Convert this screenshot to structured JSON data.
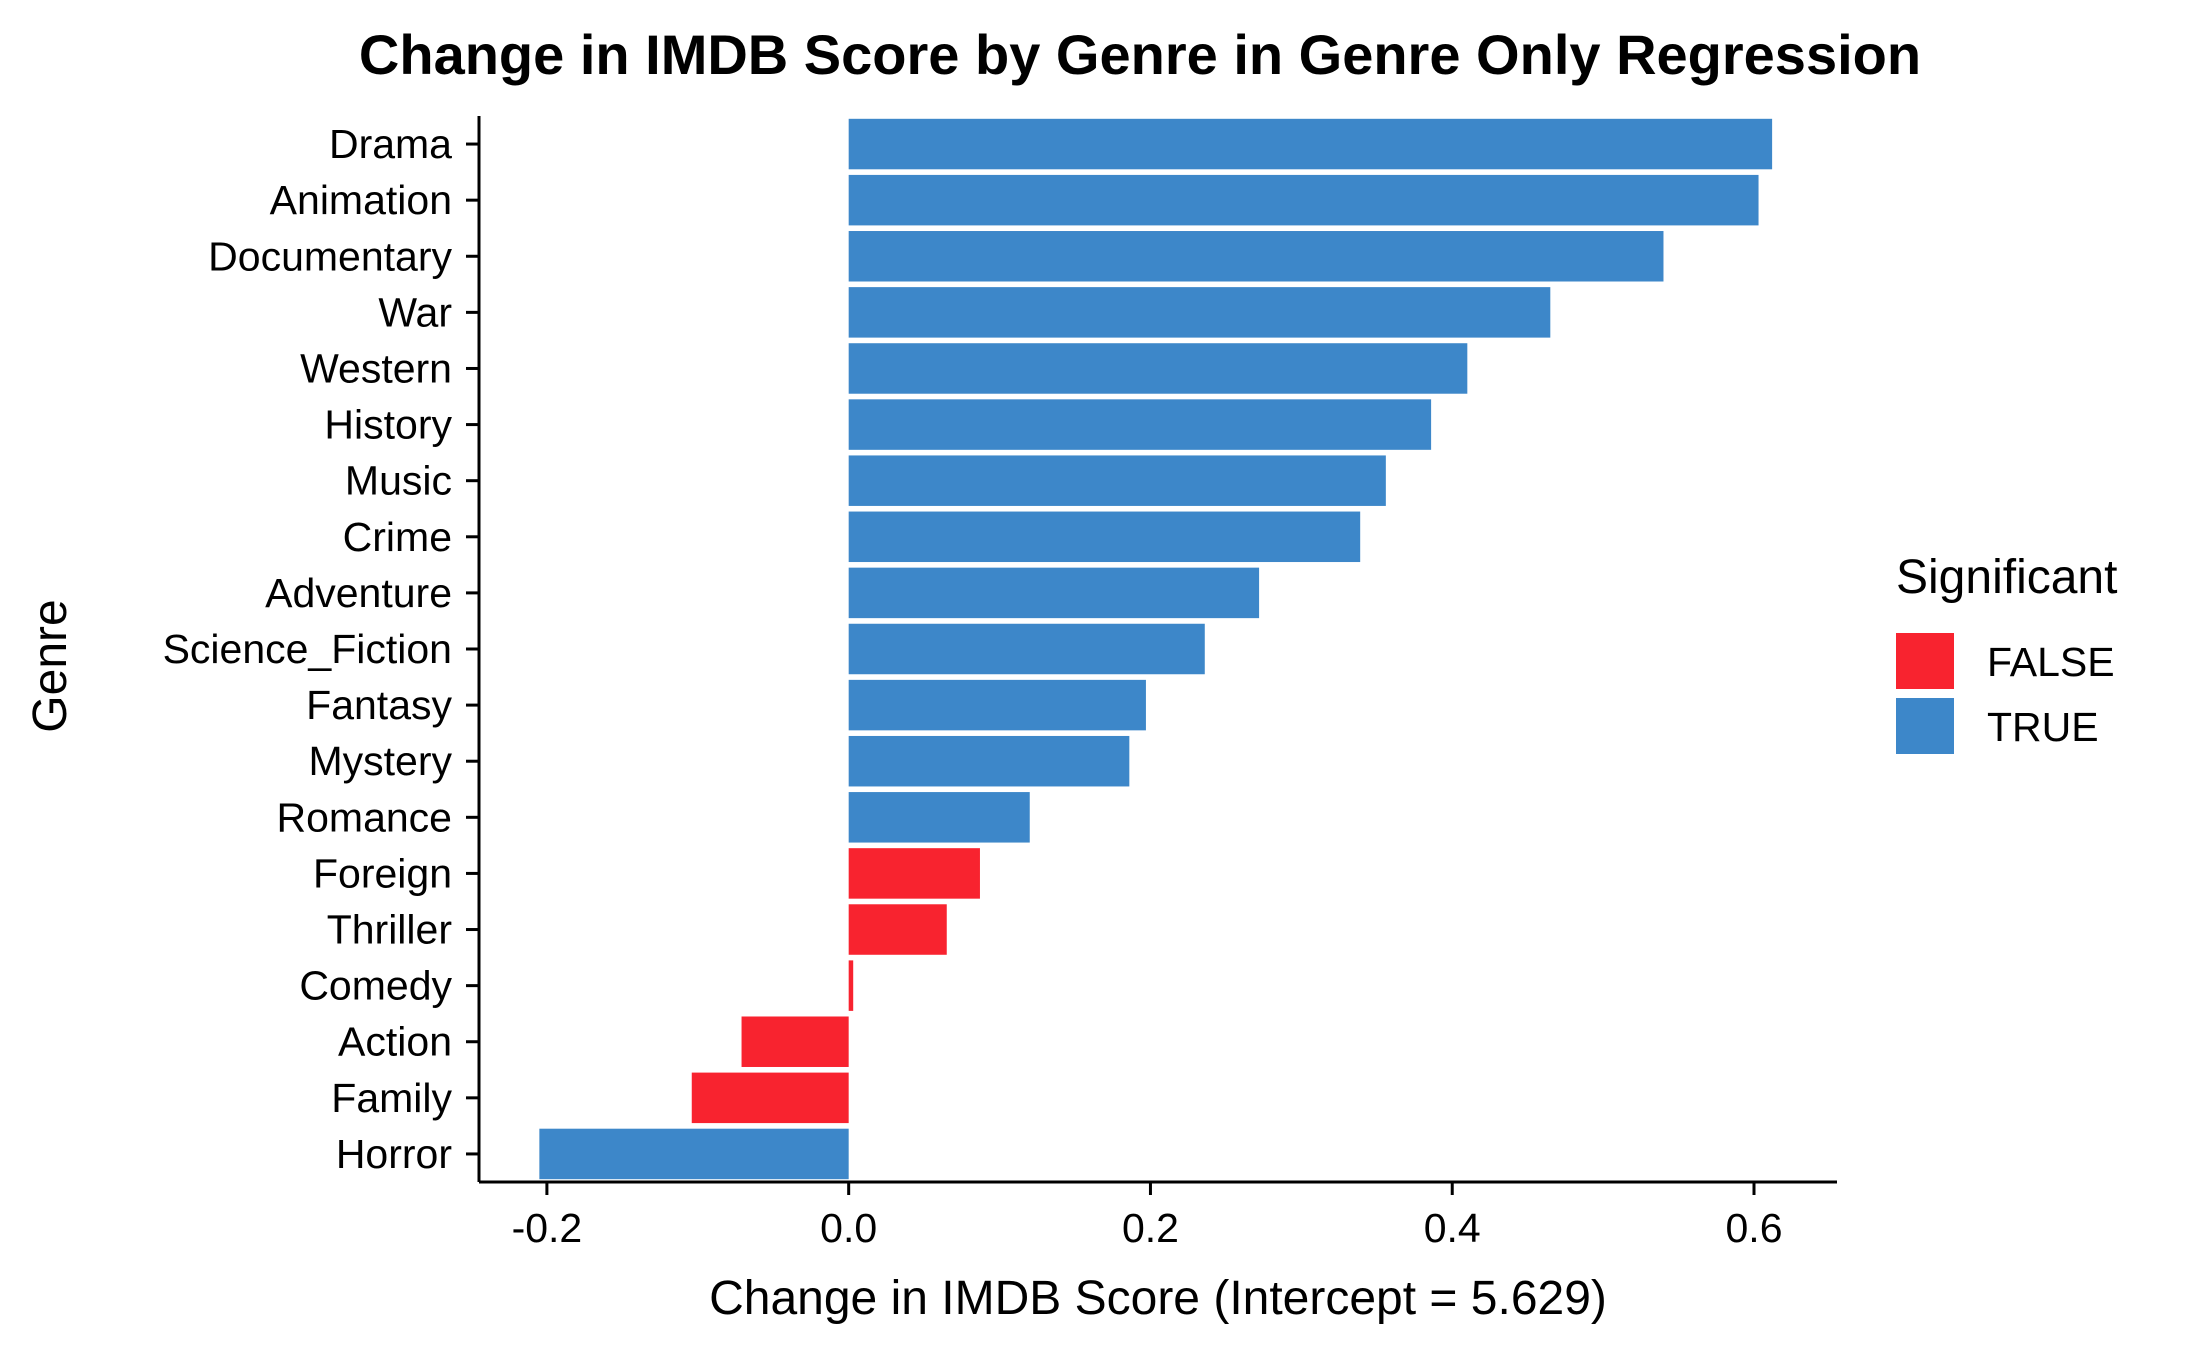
{
  "colors": {
    "false": "#f8232f",
    "true": "#3d87c9",
    "axis": "#000000",
    "background": "#ffffff"
  },
  "chart_data": {
    "type": "bar",
    "orientation": "horizontal",
    "title": "Change in IMDB Score by Genre in Genre Only Regression",
    "xlabel": "Change in IMDB Score (Intercept = 5.629)",
    "ylabel": "Genre",
    "xlim": [
      -0.245,
      0.655
    ],
    "x_ticks": [
      {
        "value": -0.2,
        "label": "-0.2"
      },
      {
        "value": 0.0,
        "label": "0.0"
      },
      {
        "value": 0.2,
        "label": "0.2"
      },
      {
        "value": 0.4,
        "label": "0.4"
      },
      {
        "value": 0.6,
        "label": "0.6"
      }
    ],
    "categories": [
      "Drama",
      "Animation",
      "Documentary",
      "War",
      "Western",
      "History",
      "Music",
      "Crime",
      "Adventure",
      "Science_Fiction",
      "Fantasy",
      "Mystery",
      "Romance",
      "Foreign",
      "Thriller",
      "Comedy",
      "Action",
      "Family",
      "Horror"
    ],
    "values": [
      0.612,
      0.603,
      0.54,
      0.465,
      0.41,
      0.386,
      0.356,
      0.339,
      0.272,
      0.236,
      0.197,
      0.186,
      0.12,
      0.087,
      0.065,
      0.003,
      -0.071,
      -0.104,
      -0.205
    ],
    "significant": [
      true,
      true,
      true,
      true,
      true,
      true,
      true,
      true,
      true,
      true,
      true,
      true,
      true,
      false,
      false,
      false,
      false,
      false,
      true
    ],
    "legend": {
      "title": "Significant",
      "position": "right",
      "entries": [
        {
          "label": "FALSE",
          "key": "false"
        },
        {
          "label": "TRUE",
          "key": "true"
        }
      ]
    },
    "grid": false
  }
}
